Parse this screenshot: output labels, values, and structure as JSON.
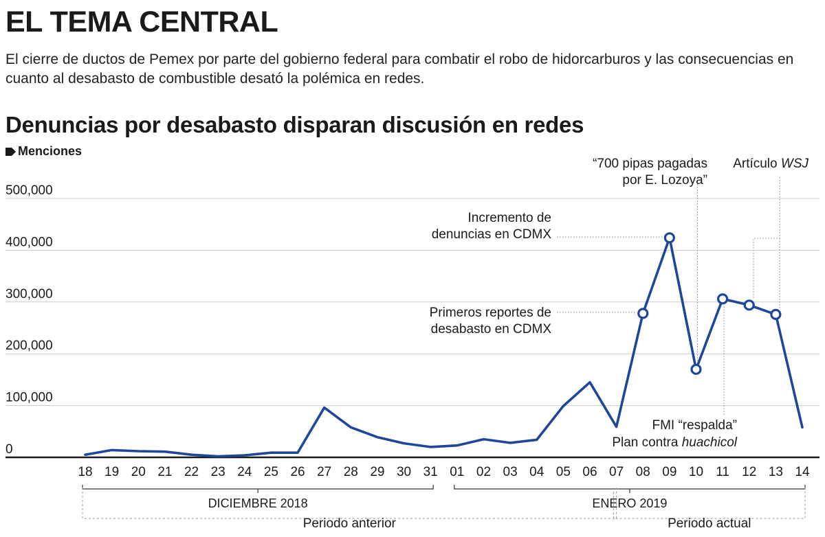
{
  "header": {
    "kicker": "EL TEMA CENTRAL",
    "intro": "El cierre de ductos de Pemex por parte del gobierno federal para combatir el robo de hidorcarburos y las consecuencias en cuanto al desabasto de combustible desató la polémica en redes."
  },
  "colors": {
    "line": "#1f4799",
    "text": "#1a1a1a",
    "grid": "#cccccc",
    "guide": "#888888"
  },
  "chart_data": {
    "type": "line",
    "title": "Denuncias por desabasto disparan discusión en redes",
    "ylabel": "Menciones",
    "ylim": [
      0,
      500000
    ],
    "yticks": [
      0,
      100000,
      200000,
      300000,
      400000,
      500000
    ],
    "ytick_labels": [
      "0",
      "100,000",
      "200,000",
      "300,000",
      "400,000",
      "500,000"
    ],
    "grid": true,
    "categories": [
      "18",
      "19",
      "20",
      "21",
      "22",
      "23",
      "24",
      "25",
      "26",
      "27",
      "28",
      "29",
      "30",
      "31",
      "01",
      "02",
      "03",
      "04",
      "05",
      "06",
      "07",
      "08",
      "09",
      "10",
      "11",
      "12",
      "13",
      "14"
    ],
    "series": [
      {
        "values": [
          5000,
          14000,
          12000,
          11000,
          5000,
          2000,
          4000,
          9000,
          9000,
          96000,
          58000,
          39000,
          27000,
          20000,
          23000,
          35000,
          28000,
          34000,
          99000,
          145000,
          59000,
          278000,
          424000,
          170000,
          306000,
          294000,
          276000,
          58000
        ],
        "markers": [
          21,
          22,
          23,
          24,
          25,
          26
        ]
      }
    ],
    "groups": [
      {
        "label": "DICIEMBRE 2018",
        "from": 0,
        "to": 13
      },
      {
        "label": "ENERO 2019",
        "from": 14,
        "to": 27
      }
    ],
    "periods": [
      {
        "label": "Periodo anterior",
        "from": 0,
        "to": 20
      },
      {
        "label": "Periodo actual",
        "from": 20,
        "to": 27
      }
    ],
    "annotations": [
      {
        "point": 21,
        "lines": [
          "Primeros reportes de",
          "desabasto en CDMX"
        ]
      },
      {
        "point": 22,
        "lines": [
          "Incremento de",
          "denuncias en CDMX"
        ]
      },
      {
        "point": 23,
        "lines": [
          "“700 pipas pagadas",
          "por E. Lozoya”"
        ]
      },
      {
        "point": 24,
        "lines": [
          "FMI “respalda”"
        ],
        "line2_prefix": "Plan contra",
        "line2_italic": "huachicol"
      },
      {
        "points": [
          25,
          26
        ],
        "lines": [
          "Artículo"
        ],
        "italic": "WSJ"
      }
    ]
  }
}
